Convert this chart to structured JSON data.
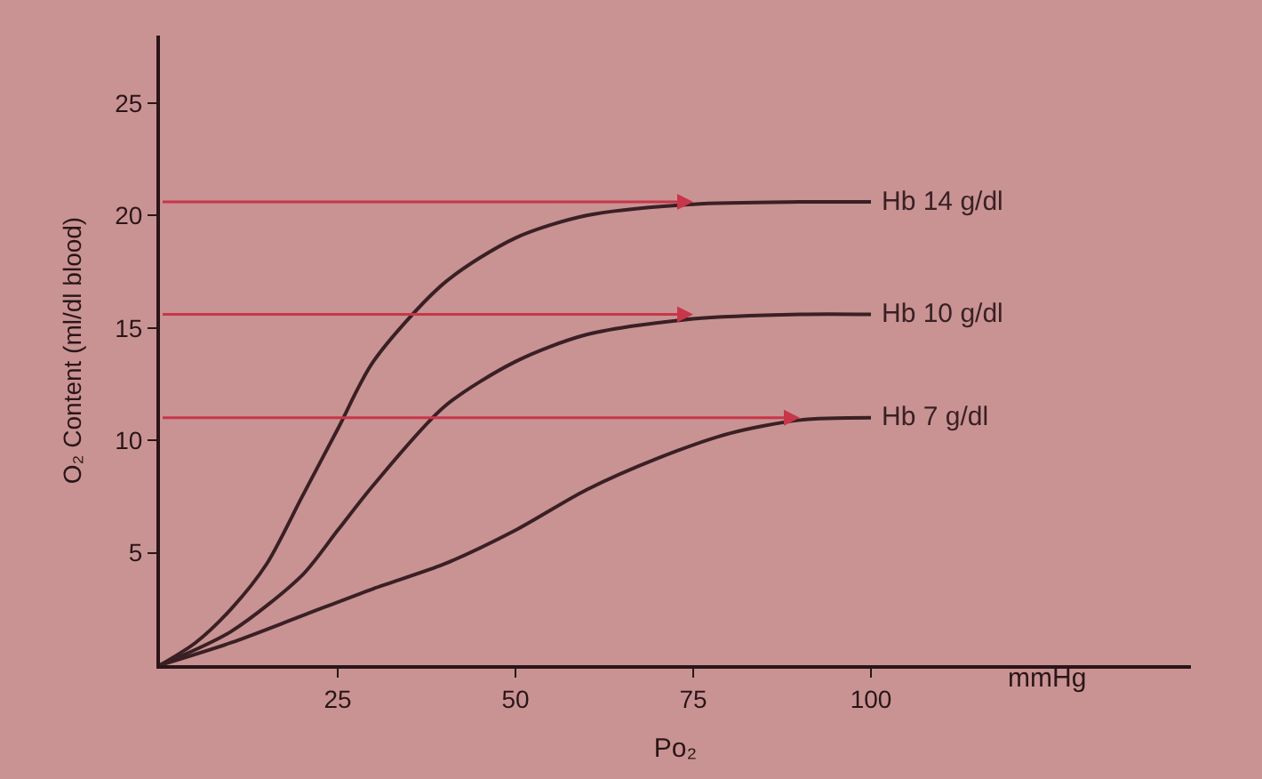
{
  "chart_data": {
    "type": "line",
    "xlabel": "Po₂",
    "ylabel": "O₂ Content (ml/dl blood)",
    "xlim": [
      0,
      145
    ],
    "xticks": [
      25,
      50,
      75,
      100
    ],
    "ylim": [
      0,
      28
    ],
    "yticks": [
      5,
      10,
      15,
      20,
      25
    ],
    "grid": false,
    "legend": false,
    "annotations": [
      "mmHg"
    ],
    "series": [
      {
        "name": "Hb 14 g/dl",
        "color": "#3a2024",
        "x": [
          0,
          5,
          10,
          15,
          20,
          25,
          30,
          40,
          50,
          60,
          75,
          90,
          100
        ],
        "values": [
          0,
          1,
          2.5,
          4.5,
          7.5,
          10.5,
          13.5,
          17,
          19,
          20,
          20.5,
          20.6,
          20.6
        ]
      },
      {
        "name": "Hb 10 g/dl",
        "color": "#3a2024",
        "x": [
          0,
          10,
          20,
          25,
          30,
          40,
          50,
          60,
          75,
          90,
          100
        ],
        "values": [
          0,
          1.5,
          4,
          6,
          8,
          11.5,
          13.5,
          14.7,
          15.4,
          15.6,
          15.6
        ]
      },
      {
        "name": "Hb 7 g/dl",
        "color": "#3a2024",
        "x": [
          0,
          10,
          20,
          30,
          40,
          50,
          60,
          70,
          80,
          90,
          100
        ],
        "values": [
          0,
          1,
          2.2,
          3.4,
          4.5,
          6,
          7.8,
          9.2,
          10.3,
          10.9,
          11
        ]
      }
    ]
  }
}
